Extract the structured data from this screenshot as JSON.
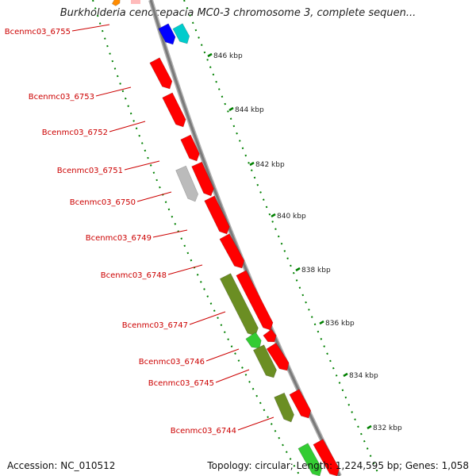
{
  "map": {
    "title": "Burkholderia cenocepacia MC0-3 chromosome 3, complete sequen...",
    "accession": "Accession: NC_010512",
    "summary": "Topology: circular; Length: 1,224,595 bp; Genes: 1,058",
    "scale_ticks": [
      "846 kbp",
      "844 kbp",
      "842 kbp",
      "840 kbp",
      "838 kbp",
      "836 kbp",
      "834 kbp",
      "832 kbp"
    ],
    "gene_labels": [
      "Bcenmc03_6755",
      "Bcenmc03_6753",
      "Bcenmc03_6752",
      "Bcenmc03_6751",
      "Bcenmc03_6750",
      "Bcenmc03_6749",
      "Bcenmc03_6748",
      "Bcenmc03_6747",
      "Bcenmc03_6746",
      "Bcenmc03_6745",
      "Bcenmc03_6744"
    ],
    "colors": {
      "cds": "#ff0000",
      "olive": "#6b8e23",
      "green": "#33cc33",
      "blue": "#0000ff",
      "cyan": "#00cccc",
      "grey": "#bbbbbb",
      "orange": "#ff8c00",
      "label": "#cc0000",
      "tick": "#008000",
      "backbone": "#888888"
    }
  }
}
